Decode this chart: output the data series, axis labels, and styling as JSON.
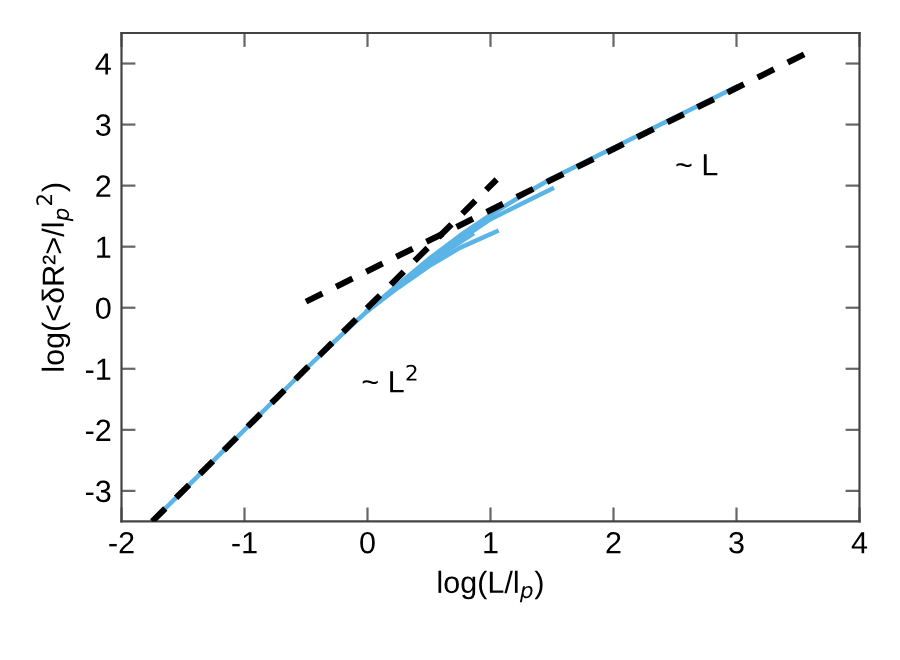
{
  "chart_data": {
    "type": "line",
    "xlabel": "log(L/l$_{p}$)",
    "ylabel": "log(<δR²>/l$_{p}$$^{2}$)",
    "xlim": [
      -2,
      4
    ],
    "ylim": [
      -3.5,
      4.5
    ],
    "xticks": [
      -2,
      -1,
      0,
      1,
      2,
      3,
      4
    ],
    "yticks": [
      -3,
      -2,
      -1,
      0,
      1,
      2,
      3,
      4
    ],
    "grid": false,
    "legend": false,
    "marker": "none",
    "series": [
      {
        "color": "#5ab4e5",
        "line_style": "solid",
        "x": [
          -1.75,
          -1.5,
          -1,
          -0.5,
          -0.25,
          0,
          0.25,
          0.5,
          0.75,
          1,
          1.25,
          1.5,
          2,
          2.5,
          3
        ],
        "values": [
          -3.5,
          -3.0,
          -2.0,
          -1.0,
          -0.52,
          -0.05,
          0.38,
          0.8,
          1.18,
          1.52,
          1.83,
          2.12,
          2.62,
          3.12,
          3.62
        ]
      },
      {
        "color": "#5ab4e5",
        "line_style": "solid",
        "x": [
          0,
          0.25,
          0.5,
          0.75,
          1.05
        ],
        "values": [
          -0.05,
          0.33,
          0.68,
          0.98,
          1.25
        ]
      },
      {
        "color": "#5ab4e5",
        "line_style": "solid",
        "x": [
          0,
          0.25,
          0.5,
          0.85
        ],
        "values": [
          -0.05,
          0.36,
          0.74,
          1.2
        ]
      },
      {
        "color": "#5ab4e5",
        "line_style": "solid",
        "x": [
          0,
          0.25,
          0.5,
          1,
          1.5
        ],
        "values": [
          -0.05,
          0.37,
          0.77,
          1.45,
          1.95
        ]
      },
      {
        "color": "#000000",
        "line_style": "dashed",
        "x": [
          -1.75,
          1.05
        ],
        "values": [
          -3.5,
          2.1
        ]
      },
      {
        "color": "#000000",
        "line_style": "dashed",
        "x": [
          -0.5,
          3.6
        ],
        "values": [
          0.1,
          4.2
        ]
      }
    ],
    "annotations": [
      "~ L",
      "~ L$^{2}$"
    ]
  }
}
